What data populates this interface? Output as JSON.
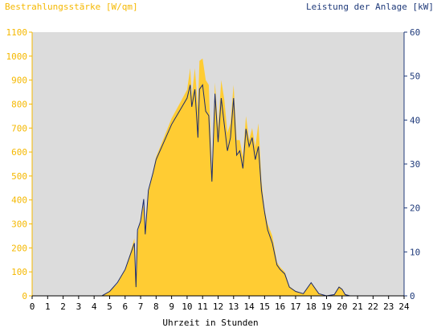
{
  "chart_data": {
    "type": "area",
    "title_left": "Bestrahlungsstärke [W/qm]",
    "title_right": "Leistung der Anlage [kW]",
    "xlabel": "Uhrzeit in Stunden",
    "xlim": [
      0,
      24
    ],
    "x_ticks": [
      0,
      1,
      2,
      3,
      4,
      5,
      6,
      7,
      8,
      9,
      10,
      11,
      12,
      13,
      14,
      15,
      16,
      17,
      18,
      19,
      20,
      21,
      22,
      23,
      24
    ],
    "ylim_left": [
      0,
      1100
    ],
    "y_ticks_left": [
      0,
      100,
      200,
      300,
      400,
      500,
      600,
      700,
      800,
      900,
      1000,
      1100
    ],
    "ylim_right": [
      0,
      60
    ],
    "y_ticks_right": [
      0,
      10,
      20,
      30,
      40,
      50,
      60
    ],
    "grid": false,
    "colors": {
      "plot_bg": "#dcdcdc",
      "irradiance_fill": "#ffcc33",
      "power_line": "#1a2a6c",
      "left_axis": "#f5b800",
      "right_axis": "#1f3a7a",
      "x_axis": "#000000"
    },
    "series": [
      {
        "name": "Bestrahlungsstärke [W/qm]",
        "axis": "left",
        "style": "area",
        "x": [
          0,
          4.5,
          5,
          5.5,
          6,
          6.3,
          6.6,
          6.7,
          6.8,
          7,
          7.2,
          7.3,
          7.5,
          7.8,
          8,
          8.5,
          9,
          9.5,
          10,
          10.2,
          10.3,
          10.5,
          10.7,
          10.8,
          11,
          11.2,
          11.4,
          11.6,
          11.8,
          12,
          12.2,
          12.4,
          12.6,
          12.8,
          13,
          13.2,
          13.4,
          13.6,
          13.8,
          14,
          14.2,
          14.4,
          14.6,
          14.8,
          15,
          15.2,
          15.5,
          15.8,
          16,
          16.3,
          16.6,
          17,
          17.5,
          18,
          18.2,
          18.5,
          19,
          19.5,
          19.8,
          20,
          20.2,
          20.5,
          24
        ],
        "y": [
          0,
          0,
          20,
          50,
          110,
          170,
          240,
          40,
          260,
          320,
          380,
          250,
          430,
          520,
          580,
          660,
          740,
          800,
          860,
          950,
          830,
          950,
          780,
          980,
          990,
          900,
          880,
          510,
          890,
          700,
          900,
          820,
          680,
          720,
          880,
          650,
          650,
          580,
          750,
          650,
          700,
          620,
          720,
          480,
          360,
          300,
          250,
          140,
          120,
          100,
          40,
          20,
          10,
          55,
          40,
          10,
          0,
          5,
          40,
          30,
          5,
          0,
          0
        ]
      },
      {
        "name": "Leistung der Anlage [kW]",
        "axis": "right",
        "style": "line",
        "x": [
          0,
          4.5,
          5,
          5.5,
          6,
          6.3,
          6.6,
          6.7,
          6.8,
          7,
          7.2,
          7.3,
          7.5,
          7.8,
          8,
          8.5,
          9,
          9.5,
          10,
          10.2,
          10.3,
          10.5,
          10.7,
          10.8,
          11,
          11.2,
          11.4,
          11.6,
          11.8,
          12,
          12.2,
          12.4,
          12.6,
          12.8,
          13,
          13.2,
          13.4,
          13.6,
          13.8,
          14,
          14.2,
          14.4,
          14.6,
          14.8,
          15,
          15.2,
          15.5,
          15.8,
          16,
          16.3,
          16.6,
          17,
          17.5,
          18,
          18.2,
          18.5,
          19,
          19.5,
          19.8,
          20,
          20.2,
          20.5,
          24
        ],
        "y": [
          0,
          0,
          1,
          3,
          6,
          9,
          12,
          2,
          15,
          17,
          22,
          14,
          24,
          28,
          31,
          35,
          39,
          42,
          45,
          48,
          43,
          47,
          36,
          47,
          48,
          42,
          41,
          26,
          46,
          35,
          45,
          39,
          33,
          36,
          45,
          32,
          33,
          29,
          38,
          34,
          36,
          31,
          34,
          24,
          19,
          15,
          12,
          7,
          6,
          5,
          2,
          1,
          0.5,
          3,
          2,
          0.5,
          0,
          0.3,
          2,
          1.5,
          0.3,
          0,
          0
        ]
      }
    ]
  }
}
